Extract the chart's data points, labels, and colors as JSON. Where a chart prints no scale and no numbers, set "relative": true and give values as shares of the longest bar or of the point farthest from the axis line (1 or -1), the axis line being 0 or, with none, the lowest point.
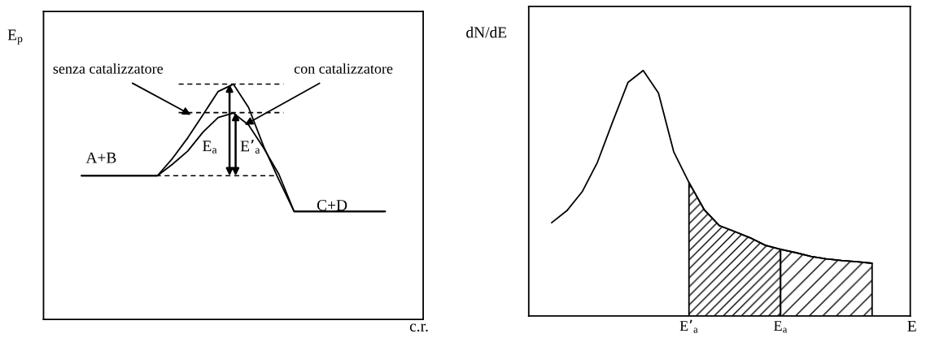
{
  "chart_data": [
    {
      "type": "line",
      "relative": true,
      "ylabel": "E$_{p}$",
      "xlabel": "c.r.",
      "categories": [
        null,
        null,
        null,
        null,
        null,
        null,
        null,
        null,
        null,
        null,
        null,
        null,
        null,
        null,
        null,
        null,
        null,
        null,
        null,
        null,
        null,
        null,
        null,
        null,
        null
      ],
      "series": [
        {
          "name": "senza catalizzatore",
          "color": "#000000",
          "values": [
            null,
            null,
            0.611,
            0.611,
            0.611,
            0.611,
            0.611,
            0.611,
            0.685,
            0.772,
            0.87,
            0.969,
            1.0,
            0.901,
            0.735,
            0.593,
            0.459,
            0.459,
            0.459,
            0.459,
            0.459,
            0.459,
            0.459,
            null,
            null
          ]
        },
        {
          "name": "con catalizzatore",
          "color": "#000000",
          "values": [
            null,
            null,
            0.611,
            0.611,
            0.611,
            0.611,
            0.611,
            0.611,
            0.66,
            0.716,
            0.796,
            0.858,
            0.877,
            0.827,
            0.728,
            0.617,
            0.459,
            0.459,
            0.459,
            0.459,
            0.459,
            0.459,
            0.459,
            null,
            null
          ]
        }
      ],
      "ref_lines": [
        {
          "axis": "y",
          "value": 1.0,
          "color": "#000000",
          "line_style": "dashed"
        },
        {
          "axis": "y",
          "value": 0.879,
          "color": "#000000",
          "line_style": "dashed"
        },
        {
          "axis": "y",
          "value": 0.611,
          "color": "#000000",
          "line_style": "dashed"
        }
      ],
      "annotations": [
        "A+B",
        "C+D",
        "E$_{a}$",
        "E’$_{a}$"
      ]
    },
    {
      "type": "line",
      "relative": true,
      "ylabel": "dN/dE",
      "xlabel": "E",
      "categories": [
        null,
        null,
        null,
        null,
        null,
        null,
        null,
        null,
        null,
        null,
        "E’$_{a}$",
        null,
        null,
        null,
        null,
        null,
        "E$_{a}$",
        null,
        null,
        null,
        null,
        null,
        null,
        null,
        null
      ],
      "series": [
        {
          "color": "#000000",
          "values": [
            null,
            0.38,
            0.429,
            0.506,
            0.626,
            0.791,
            0.951,
            1.0,
            0.908,
            0.669,
            0.544,
            0.433,
            0.368,
            0.344,
            0.319,
            0.288,
            0.272,
            0.258,
            0.243,
            0.233,
            0.226,
            0.221,
            0.215,
            null,
            null
          ]
        },
        {
          "type": "area",
          "color": "#000000",
          "values": [
            null,
            null,
            null,
            null,
            null,
            null,
            null,
            null,
            null,
            null,
            0.544,
            0.433,
            0.368,
            0.344,
            0.319,
            0.288,
            0.272,
            null,
            null,
            null,
            null,
            null,
            null,
            null,
            null
          ]
        },
        {
          "type": "area",
          "color": "#000000",
          "values": [
            null,
            null,
            null,
            null,
            null,
            null,
            null,
            null,
            null,
            null,
            null,
            null,
            null,
            null,
            null,
            null,
            0.272,
            0.258,
            0.243,
            0.233,
            0.226,
            0.221,
            0.215,
            null,
            null
          ]
        }
      ]
    }
  ]
}
